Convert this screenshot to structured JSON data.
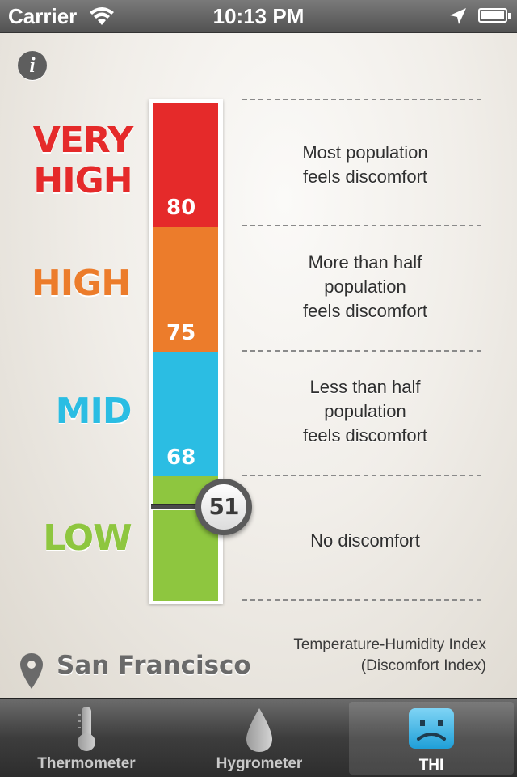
{
  "status_bar": {
    "carrier": "Carrier",
    "time": "10:13 PM"
  },
  "levels": [
    {
      "label_lines": [
        "VERY",
        "HIGH"
      ],
      "color": "#e52a2a",
      "threshold": "80",
      "description": [
        "Most population",
        "feels discomfort"
      ]
    },
    {
      "label_lines": [
        "HIGH"
      ],
      "color": "#ec7c2b",
      "threshold": "75",
      "description": [
        "More than half",
        "population",
        "feels discomfort"
      ]
    },
    {
      "label_lines": [
        "MID"
      ],
      "color": "#2bbde3",
      "threshold": "68",
      "description": [
        "Less than half",
        "population",
        "feels discomfort"
      ]
    },
    {
      "label_lines": [
        "LOW"
      ],
      "color": "#8ec63f",
      "threshold": "",
      "description": [
        "No discomfort"
      ]
    }
  ],
  "current_value": "51",
  "location": {
    "city": "San Francisco",
    "icon": "map-pin-icon"
  },
  "caption": {
    "line1": "Temperature-Humidity Index",
    "line2": "(Discomfort Index)"
  },
  "info_icon": "i",
  "tabs": [
    {
      "label": "Thermometer",
      "icon": "thermometer-icon",
      "selected": false
    },
    {
      "label": "Hygrometer",
      "icon": "water-drop-icon",
      "selected": false
    },
    {
      "label": "THI",
      "icon": "sad-face-icon",
      "selected": true
    }
  ]
}
